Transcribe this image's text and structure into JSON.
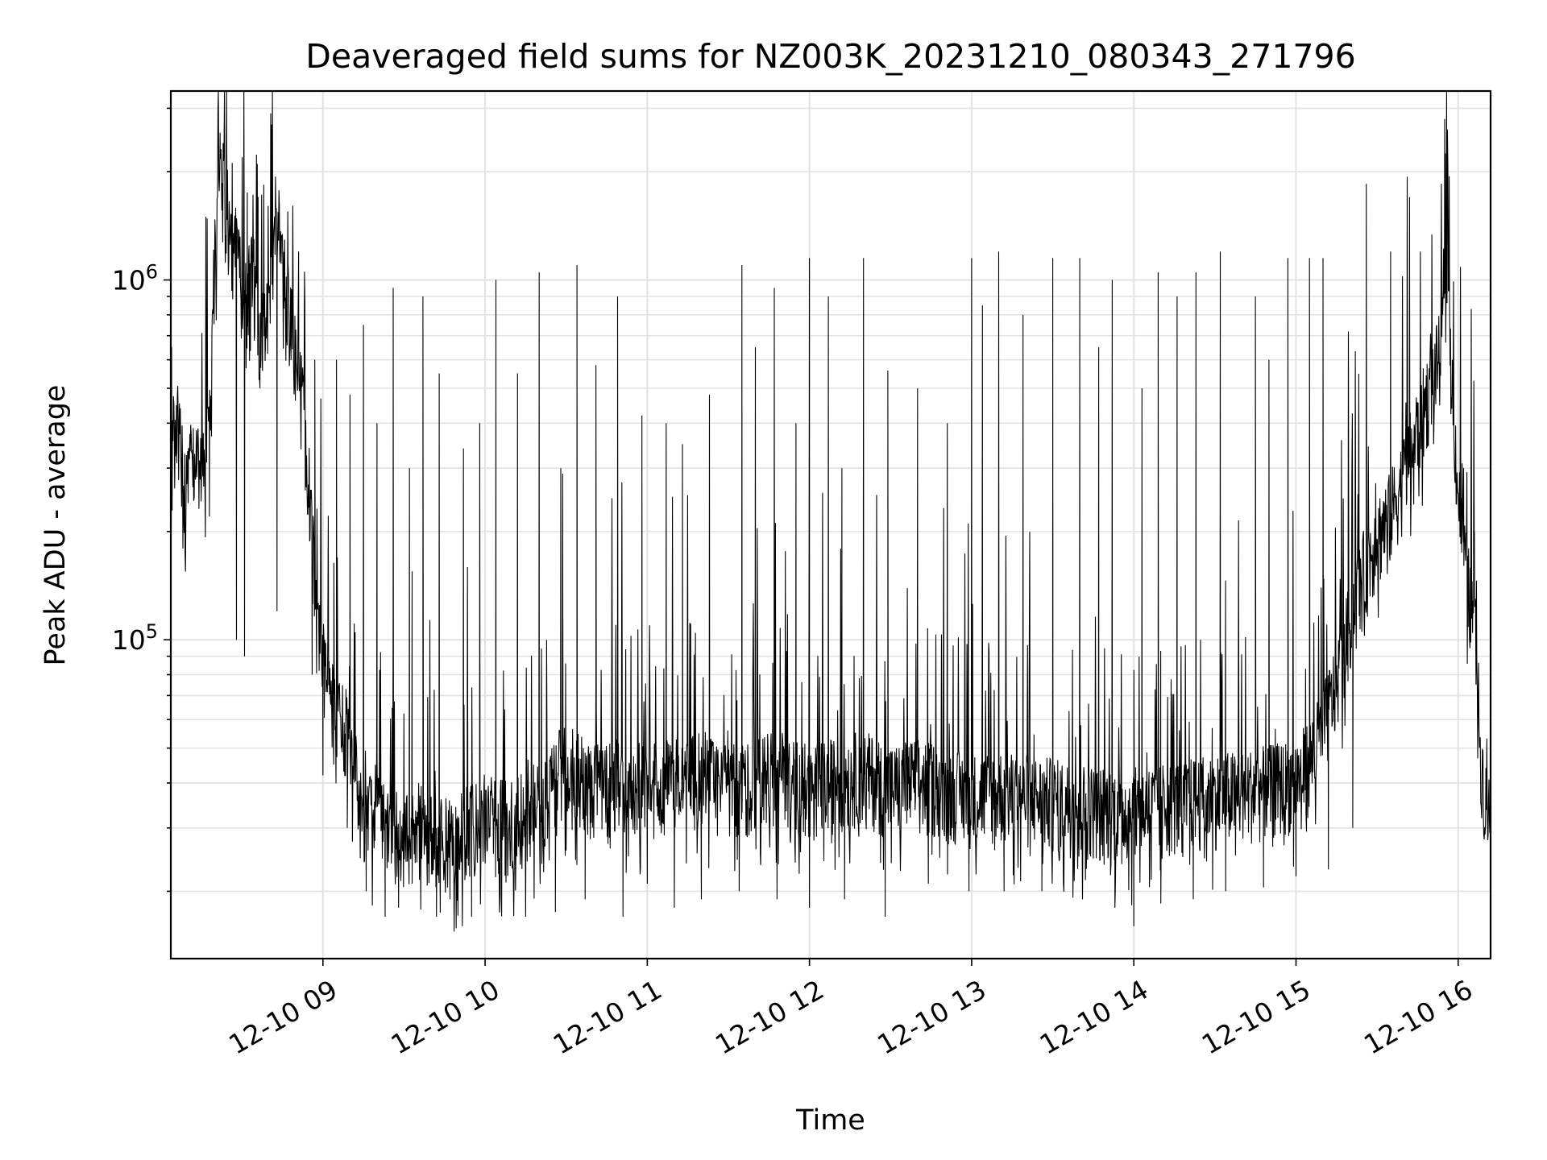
{
  "chart_data": {
    "type": "line",
    "title": "Deaveraged field sums for NZ003K_20231210_080343_271796",
    "xlabel": "Time",
    "ylabel": "Peak ADU - average",
    "xscale": "time",
    "yscale": "log",
    "xlim": [
      "2023-12-10 08:03:43",
      "2023-12-10 16:12:00"
    ],
    "ylim": [
      13000,
      3350000
    ],
    "grid": true,
    "legend": "none",
    "line_color": "#000000",
    "grid_color": "#e3e3e3",
    "x_ticks": [
      {
        "value": "2023-12-10 09:00",
        "label": "12-10 09"
      },
      {
        "value": "2023-12-10 10:00",
        "label": "12-10 10"
      },
      {
        "value": "2023-12-10 11:00",
        "label": "12-10 11"
      },
      {
        "value": "2023-12-10 12:00",
        "label": "12-10 12"
      },
      {
        "value": "2023-12-10 13:00",
        "label": "12-10 13"
      },
      {
        "value": "2023-12-10 14:00",
        "label": "12-10 14"
      },
      {
        "value": "2023-12-10 15:00",
        "label": "12-10 15"
      },
      {
        "value": "2023-12-10 16:00",
        "label": "12-10 16"
      }
    ],
    "y_ticks": [
      {
        "value": 100000,
        "base": "10",
        "exp": "5"
      },
      {
        "value": 1000000,
        "base": "10",
        "exp": "6"
      }
    ],
    "series": [
      {
        "points": [
          [
            "08:03",
            300000
          ],
          [
            "08:06",
            420000
          ],
          [
            "08:09",
            260000
          ],
          [
            "08:12",
            330000
          ],
          [
            "08:15",
            300000
          ],
          [
            "08:18",
            360000
          ],
          [
            "08:20",
            1000000
          ],
          [
            "08:22",
            2000000
          ],
          [
            "08:25",
            1500000
          ],
          [
            "08:28",
            1200000
          ],
          [
            "08:31",
            800000
          ],
          [
            "08:34",
            1100000
          ],
          [
            "08:37",
            650000
          ],
          [
            "08:40",
            900000
          ],
          [
            "08:43",
            1300000
          ],
          [
            "08:46",
            1000000
          ],
          [
            "08:49",
            650000
          ],
          [
            "08:52",
            500000
          ],
          [
            "08:55",
            250000
          ],
          [
            "08:58",
            100000
          ],
          [
            "09:01",
            80000
          ],
          [
            "09:04",
            65000
          ],
          [
            "09:07",
            60000
          ],
          [
            "09:10",
            50000
          ],
          [
            "09:13",
            38000
          ],
          [
            "09:16",
            30000
          ],
          [
            "09:20",
            35000
          ],
          [
            "09:25",
            30000
          ],
          [
            "09:30",
            27000
          ],
          [
            "09:35",
            30000
          ],
          [
            "09:40",
            28000
          ],
          [
            "09:45",
            27000
          ],
          [
            "09:50",
            28000
          ],
          [
            "09:55",
            30000
          ],
          [
            "10:00",
            32000
          ],
          [
            "10:10",
            30000
          ],
          [
            "10:20",
            35000
          ],
          [
            "10:30",
            45000
          ],
          [
            "10:40",
            38000
          ],
          [
            "10:50",
            40000
          ],
          [
            "11:00",
            38000
          ],
          [
            "11:10",
            40000
          ],
          [
            "11:20",
            42000
          ],
          [
            "11:30",
            38000
          ],
          [
            "11:40",
            40000
          ],
          [
            "11:50",
            42000
          ],
          [
            "12:00",
            38000
          ],
          [
            "12:10",
            40000
          ],
          [
            "12:20",
            42000
          ],
          [
            "12:30",
            38000
          ],
          [
            "12:40",
            40000
          ],
          [
            "12:50",
            38000
          ],
          [
            "13:00",
            36000
          ],
          [
            "13:10",
            37000
          ],
          [
            "13:20",
            36000
          ],
          [
            "13:30",
            35000
          ],
          [
            "13:40",
            34000
          ],
          [
            "13:50",
            33000
          ],
          [
            "14:00",
            33000
          ],
          [
            "14:10",
            34000
          ],
          [
            "14:20",
            35000
          ],
          [
            "14:30",
            36000
          ],
          [
            "14:40",
            37000
          ],
          [
            "14:50",
            38000
          ],
          [
            "15:00",
            40000
          ],
          [
            "15:05",
            45000
          ],
          [
            "15:10",
            55000
          ],
          [
            "15:15",
            75000
          ],
          [
            "15:20",
            110000
          ],
          [
            "15:25",
            150000
          ],
          [
            "15:30",
            190000
          ],
          [
            "15:35",
            220000
          ],
          [
            "15:40",
            280000
          ],
          [
            "15:45",
            380000
          ],
          [
            "15:50",
            500000
          ],
          [
            "15:53",
            600000
          ],
          [
            "15:56",
            900000
          ],
          [
            "15:58",
            450000
          ],
          [
            "16:00",
            250000
          ],
          [
            "16:03",
            150000
          ],
          [
            "16:05",
            120000
          ],
          [
            "16:07",
            90000
          ],
          [
            "16:08",
            50000
          ],
          [
            "16:10",
            35000
          ],
          [
            "16:12",
            31000
          ]
        ],
        "spikes": [
          [
            "08:04",
            650000
          ],
          [
            "08:22",
            2200000
          ],
          [
            "08:32",
            1750000
          ],
          [
            "08:36",
            1700000
          ],
          [
            "08:41",
            2700000
          ],
          [
            "08:47",
            1550000
          ],
          [
            "08:51",
            1200000
          ],
          [
            "08:57",
            600000
          ],
          [
            "09:05",
            600000
          ],
          [
            "09:10",
            480000
          ],
          [
            "09:15",
            750000
          ],
          [
            "09:20",
            400000
          ],
          [
            "09:26",
            950000
          ],
          [
            "09:32",
            300000
          ],
          [
            "09:37",
            900000
          ],
          [
            "09:43",
            550000
          ],
          [
            "09:52",
            340000
          ],
          [
            "09:58",
            400000
          ],
          [
            "10:04",
            1000000
          ],
          [
            "10:12",
            550000
          ],
          [
            "10:20",
            1050000
          ],
          [
            "10:28",
            300000
          ],
          [
            "10:34",
            1100000
          ],
          [
            "10:41",
            580000
          ],
          [
            "10:49",
            900000
          ],
          [
            "10:58",
            420000
          ],
          [
            "11:07",
            400000
          ],
          [
            "11:13",
            350000
          ],
          [
            "11:23",
            480000
          ],
          [
            "11:35",
            1100000
          ],
          [
            "11:40",
            650000
          ],
          [
            "11:47",
            950000
          ],
          [
            "11:55",
            400000
          ],
          [
            "12:00",
            1150000
          ],
          [
            "12:07",
            900000
          ],
          [
            "12:12",
            300000
          ],
          [
            "12:20",
            1150000
          ],
          [
            "12:29",
            560000
          ],
          [
            "12:40",
            500000
          ],
          [
            "12:51",
            400000
          ],
          [
            "13:00",
            1150000
          ],
          [
            "13:04",
            850000
          ],
          [
            "13:10",
            1200000
          ],
          [
            "13:19",
            800000
          ],
          [
            "13:30",
            1150000
          ],
          [
            "13:40",
            1150000
          ],
          [
            "13:47",
            650000
          ],
          [
            "13:52",
            1000000
          ],
          [
            "14:03",
            500000
          ],
          [
            "14:09",
            1050000
          ],
          [
            "14:16",
            900000
          ],
          [
            "14:23",
            1050000
          ],
          [
            "14:32",
            1200000
          ],
          [
            "14:45",
            900000
          ],
          [
            "14:50",
            600000
          ],
          [
            "14:57",
            1150000
          ],
          [
            "15:05",
            1150000
          ],
          [
            "15:10",
            1150000
          ],
          [
            "15:26",
            1850000
          ],
          [
            "15:35",
            1200000
          ],
          [
            "15:42",
            1700000
          ],
          [
            "15:46",
            1200000
          ],
          [
            "15:55",
            2800000
          ],
          [
            "15:58",
            550000
          ],
          [
            "16:02",
            300000
          ],
          [
            "16:06",
            200000
          ]
        ],
        "dips": [
          [
            "08:18",
            220000
          ],
          [
            "08:28",
            100000
          ],
          [
            "08:31",
            90000
          ],
          [
            "08:43",
            120000
          ],
          [
            "08:56",
            80000
          ],
          [
            "09:00",
            42000
          ],
          [
            "09:04",
            45000
          ],
          [
            "09:09",
            30000
          ],
          [
            "09:16",
            20000
          ],
          [
            "09:23",
            17000
          ],
          [
            "09:28",
            18000
          ],
          [
            "09:33",
            21000
          ],
          [
            "09:42",
            17000
          ],
          [
            "09:47",
            19000
          ],
          [
            "09:55",
            17000
          ],
          [
            "10:06",
            19000
          ],
          [
            "10:15",
            17000
          ],
          [
            "10:26",
            17500
          ],
          [
            "10:37",
            19000
          ],
          [
            "10:51",
            17000
          ],
          [
            "11:00",
            21000
          ],
          [
            "11:10",
            18000
          ],
          [
            "11:20",
            19000
          ],
          [
            "11:34",
            20000
          ],
          [
            "11:48",
            19000
          ],
          [
            "12:00",
            18000
          ],
          [
            "12:13",
            19000
          ],
          [
            "12:28",
            17000
          ],
          [
            "12:44",
            21000
          ],
          [
            "12:59",
            20000
          ],
          [
            "13:12",
            20000
          ],
          [
            "13:26",
            20000
          ],
          [
            "13:41",
            19000
          ],
          [
            "13:53",
            18000
          ],
          [
            "14:00",
            16000
          ],
          [
            "14:10",
            18500
          ],
          [
            "14:22",
            19000
          ],
          [
            "14:34",
            20000
          ],
          [
            "14:48",
            20500
          ],
          [
            "15:00",
            22000
          ],
          [
            "15:12",
            23000
          ],
          [
            "15:21",
            30000
          ]
        ]
      }
    ]
  }
}
